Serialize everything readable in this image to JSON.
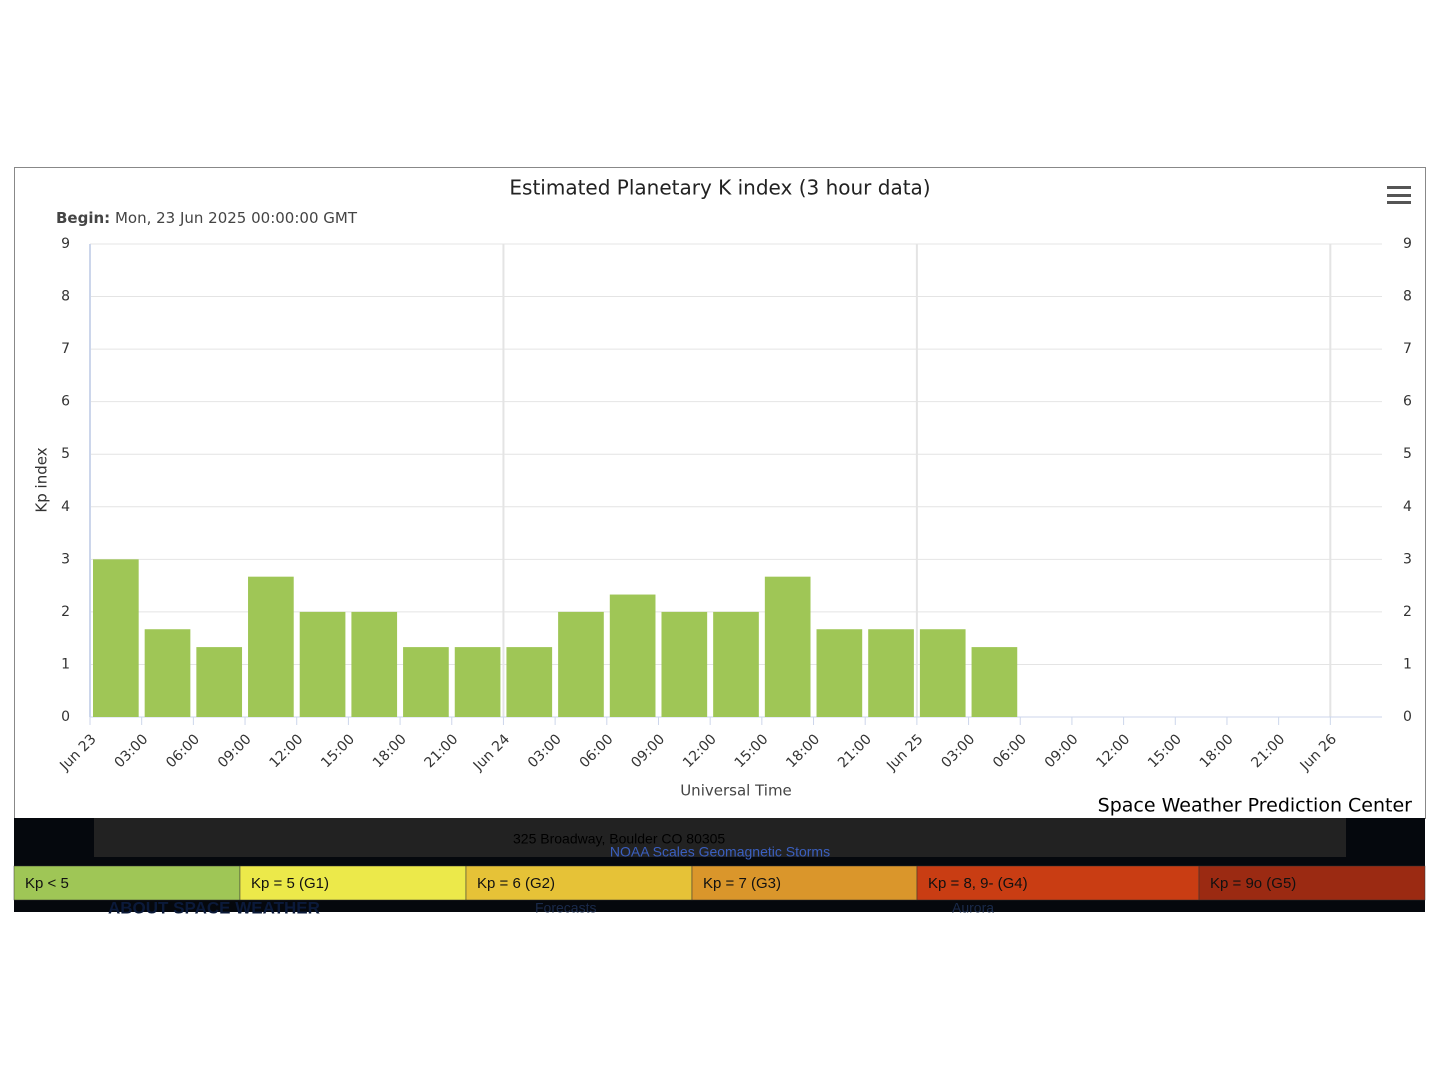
{
  "chart_data": {
    "type": "bar",
    "title": "Estimated Planetary K index (3 hour data)",
    "subtitle_label": "Begin:",
    "subtitle": "Mon, 23 Jun 2025 00:00:00 GMT",
    "y_axis_label": "Kp index",
    "x_axis_label": "Universal Time",
    "credit": "Space Weather Prediction Center",
    "xtick_labels": [
      "Jun 23",
      "03:00",
      "06:00",
      "09:00",
      "12:00",
      "15:00",
      "18:00",
      "21:00",
      "Jun 24",
      "03:00",
      "06:00",
      "09:00",
      "12:00",
      "15:00",
      "18:00",
      "21:00",
      "Jun 25",
      "03:00",
      "06:00",
      "09:00",
      "12:00",
      "15:00",
      "18:00",
      "21:00",
      "Jun 26"
    ],
    "values": [
      3,
      1.67,
      1.33,
      2.67,
      2,
      2,
      1.33,
      1.33,
      1.33,
      2,
      2.33,
      2,
      2,
      2.67,
      1.67,
      1.67,
      1.67,
      1.33
    ],
    "color": "#9fc656",
    "ylim": [
      0,
      9
    ],
    "yticks": [
      0,
      1,
      2,
      3,
      4,
      5,
      6,
      7,
      8,
      9
    ],
    "grid": true,
    "legend_scale": [
      {
        "label": "Kp < 5",
        "color": "#9fc656"
      },
      {
        "label": "Kp = 5 (G1)",
        "color": "#ece94a"
      },
      {
        "label": "Kp = 6 (G2)",
        "color": "#e6c237"
      },
      {
        "label": "Kp = 7 (G3)",
        "color": "#da962b"
      },
      {
        "label": "Kp = 8, 9- (G4)",
        "color": "#c93d13"
      },
      {
        "label": "Kp = 9o (G5)",
        "color": "#9b2a12"
      }
    ]
  },
  "footer": {
    "address": "325 Broadway, Boulder CO 80305",
    "link": "NOAA Scales Geomagnetic Storms",
    "about": "ABOUT SPACE WEATHER",
    "forecasts": "Forecasts",
    "aurora": "Aurora"
  }
}
